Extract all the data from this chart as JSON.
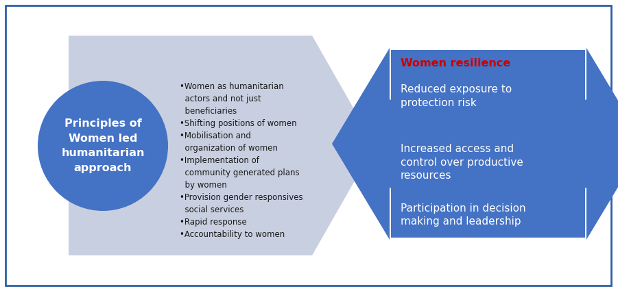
{
  "bg_color": "#ffffff",
  "border_color": "#2e5fa3",
  "circle_color": "#4472c4",
  "circle_text": "Principles of\nWomen led\nhumanitarian\napproach",
  "circle_text_color": "#ffffff",
  "arrow_light_color": "#c8cfe0",
  "arrow_dark_color": "#4472c4",
  "bullets": [
    "Women as humanitarian\n  actors and not just\n  beneficiaries",
    "Shifting positions of women",
    "Mobilisation and\n  organization of women",
    "Implementation of\n  community generated plans\n  by women",
    "Provision gender responsives\n  social services",
    "Rapid response",
    "Accountability to women"
  ],
  "right_box_color": "#4472c4",
  "right_title": "Women resilience",
  "right_title_color": "#cc0000",
  "right_items": [
    "Reduced exposure to\nprotection risk",
    "Increased access and\ncontrol over productive\nresources",
    "Participation in decision\nmaking and leadership"
  ],
  "right_items_color": "#ffffff"
}
